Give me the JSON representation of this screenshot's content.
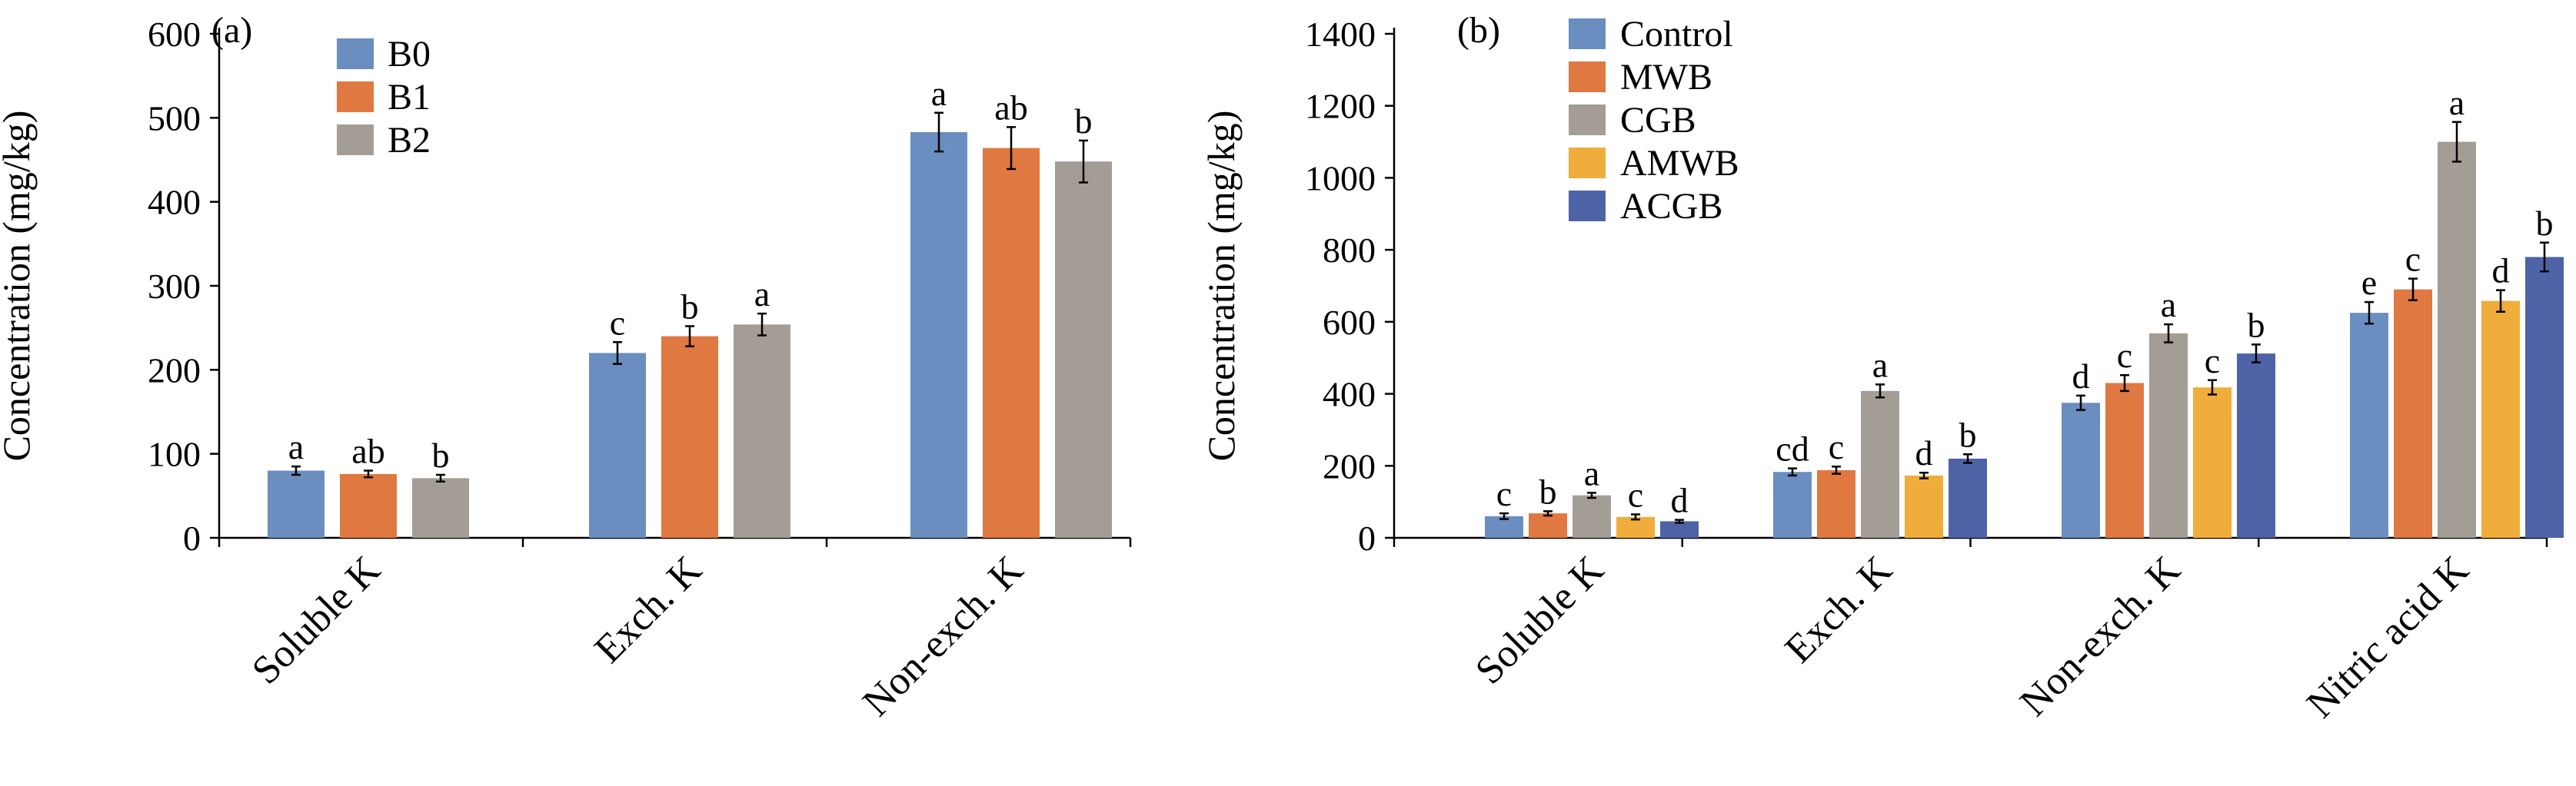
{
  "chart_data": [
    {
      "type": "bar",
      "panel_label": "(a)",
      "ylabel": "Concentration (mg/kg)",
      "ylim": [
        0,
        600
      ],
      "yticks": [
        0,
        100,
        200,
        300,
        400,
        500,
        600
      ],
      "categories": [
        "Soluble K",
        "Exch. K",
        "Non-exch. K"
      ],
      "legend_position": "top-left",
      "grid": false,
      "series": [
        {
          "name": "B0",
          "color": "#6a8ebf",
          "values": [
            80,
            220,
            483
          ],
          "errors": [
            5,
            13,
            23
          ],
          "letters": [
            "a",
            "c",
            "a"
          ]
        },
        {
          "name": "B1",
          "color": "#e07841",
          "values": [
            76,
            240,
            464
          ],
          "errors": [
            4,
            12,
            25
          ],
          "letters": [
            "ab",
            "b",
            "ab"
          ]
        },
        {
          "name": "B2",
          "color": "#a49d96",
          "values": [
            71,
            254,
            448
          ],
          "errors": [
            4,
            13,
            25
          ],
          "letters": [
            "b",
            "a",
            "b"
          ]
        }
      ]
    },
    {
      "type": "bar",
      "panel_label": "(b)",
      "ylabel": "Concentration (mg/kg)",
      "ylim": [
        0,
        1400
      ],
      "yticks": [
        0,
        200,
        400,
        600,
        800,
        1000,
        1200,
        1400
      ],
      "categories": [
        "Soluble K",
        "Exch. K",
        "Non-exch. K",
        "Nitric acid K"
      ],
      "legend_position": "top-left",
      "grid": false,
      "series": [
        {
          "name": "Control",
          "color": "#6a8ebf",
          "values": [
            60,
            183,
            375,
            625
          ],
          "errors": [
            8,
            10,
            20,
            30
          ],
          "letters": [
            "c",
            "cd",
            "d",
            "e"
          ]
        },
        {
          "name": "MWB",
          "color": "#e07841",
          "values": [
            68,
            188,
            430,
            690
          ],
          "errors": [
            6,
            10,
            22,
            30
          ],
          "letters": [
            "b",
            "c",
            "c",
            "c"
          ]
        },
        {
          "name": "CGB",
          "color": "#a49d96",
          "values": [
            118,
            408,
            568,
            1100
          ],
          "errors": [
            7,
            18,
            25,
            55
          ],
          "letters": [
            "a",
            "a",
            "a",
            "a"
          ]
        },
        {
          "name": "AMWB",
          "color": "#f1ad3b",
          "values": [
            58,
            173,
            418,
            658
          ],
          "errors": [
            7,
            8,
            20,
            30
          ],
          "letters": [
            "c",
            "d",
            "c",
            "d"
          ]
        },
        {
          "name": "ACGB",
          "color": "#4e63a6",
          "values": [
            46,
            220,
            512,
            780
          ],
          "errors": [
            4,
            12,
            25,
            40
          ],
          "letters": [
            "d",
            "b",
            "b",
            "b"
          ]
        }
      ]
    }
  ]
}
